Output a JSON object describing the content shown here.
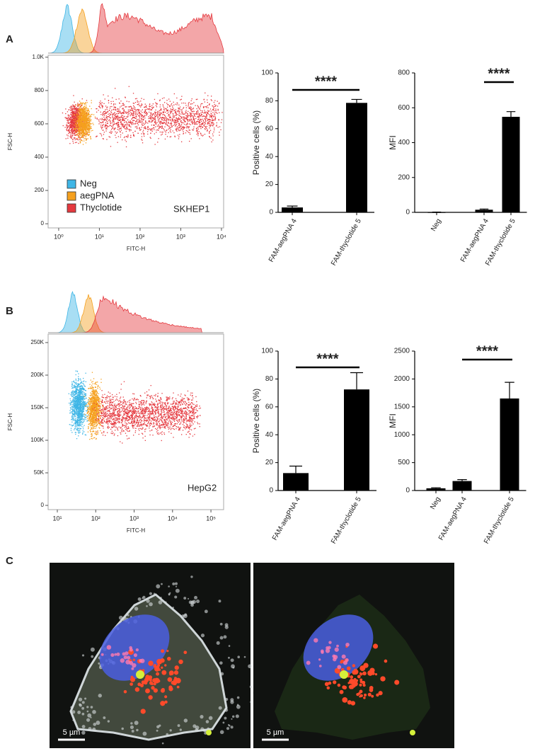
{
  "panels": [
    "A",
    "B",
    "C"
  ],
  "chart_data": [
    {
      "type": "scatter",
      "xlabel": "FITC-H",
      "ylabel": "FSC-H",
      "xscale": "log",
      "xlim": [
        0.55,
        11300
      ],
      "ylim": [
        -25,
        1012
      ],
      "xticks": [
        {
          "value": 1,
          "label": "10⁰"
        },
        {
          "value": 10,
          "label": "10¹"
        },
        {
          "value": 100,
          "label": "10²"
        },
        {
          "value": 1000,
          "label": "10³"
        },
        {
          "value": 10000,
          "label": "10⁴"
        }
      ],
      "yticks": [
        0,
        200,
        400,
        600,
        800,
        {
          "value": 1000,
          "label": "1.0K"
        }
      ],
      "series": [
        {
          "name": "Neg",
          "color": "#3fb6e6"
        },
        {
          "name": "aegPNA",
          "color": "#f5a01e"
        },
        {
          "name": "Thyclotide",
          "color": "#e5393f"
        }
      ],
      "annotation": "SKHEP1"
    },
    {
      "type": "bar",
      "ylabel": "Positive cells (%)",
      "categories": [
        "FAM-aegPNA 4",
        "FAM-thyclotide 5"
      ],
      "values": [
        3.5,
        78.5
      ],
      "errors": [
        1,
        2.5
      ],
      "ylim": [
        0,
        100
      ],
      "yticks": [
        0,
        20,
        40,
        60,
        80,
        100
      ],
      "color": "#000000",
      "significance": "****"
    },
    {
      "type": "bar",
      "ylabel": "MFI",
      "categories": [
        "Neg",
        "FAM-aegPNA 4",
        "FAM-thyclotide 5"
      ],
      "values": [
        1,
        15,
        548
      ],
      "errors": [
        0.5,
        4,
        30
      ],
      "ylim": [
        0,
        800
      ],
      "yticks": [
        0,
        200,
        400,
        600,
        800
      ],
      "color": "#000000",
      "significance": "****"
    },
    {
      "type": "scatter",
      "xlabel": "FITC-H",
      "ylabel": "FSC-H",
      "xscale": "log",
      "xlim": [
        5.76,
        214000
      ],
      "ylim": [
        -6500,
        263000
      ],
      "xticks": [
        {
          "value": 10,
          "label": "10¹"
        },
        {
          "value": 100,
          "label": "10²"
        },
        {
          "value": 1000,
          "label": "10³"
        },
        {
          "value": 10000,
          "label": "10⁴"
        },
        {
          "value": 100000,
          "label": "10⁵"
        }
      ],
      "yticks": [
        0,
        {
          "value": 50000,
          "label": "50K"
        },
        {
          "value": 100000,
          "label": "100K"
        },
        {
          "value": 150000,
          "label": "150K"
        },
        {
          "value": 200000,
          "label": "200K"
        },
        {
          "value": 250000,
          "label": "250K"
        }
      ],
      "series": [
        {
          "name": "Neg",
          "color": "#3fb6e6"
        },
        {
          "name": "aegPNA",
          "color": "#f5a01e"
        },
        {
          "name": "Thyclotide",
          "color": "#e5393f"
        }
      ],
      "annotation": "HepG2"
    },
    {
      "type": "bar",
      "ylabel": "Positive cells (%)",
      "categories": [
        "FAM-aegPNA 4",
        "FAM-thyclotide 5"
      ],
      "values": [
        12.5,
        72.5
      ],
      "errors": [
        5,
        12
      ],
      "ylim": [
        0,
        100
      ],
      "yticks": [
        0,
        20,
        40,
        60,
        80,
        100
      ],
      "color": "#000000",
      "significance": "****"
    },
    {
      "type": "bar",
      "ylabel": "MFI",
      "categories": [
        "Neg",
        "FAM-aegPNA 4",
        "FAM-thyclotide 5"
      ],
      "values": [
        40,
        170,
        1650
      ],
      "errors": [
        10,
        25,
        290
      ],
      "ylim": [
        0,
        2500
      ],
      "yticks": [
        0,
        500,
        1000,
        1500,
        2000,
        2500
      ],
      "color": "#000000",
      "significance": "****"
    }
  ],
  "images": [
    {
      "scale_bar": "5 µm"
    },
    {
      "scale_bar": "5 µm"
    }
  ]
}
